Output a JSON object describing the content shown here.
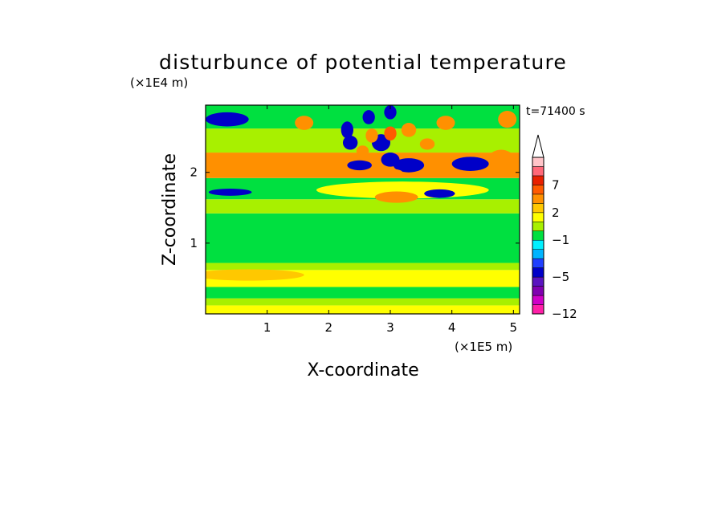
{
  "chart_data": {
    "type": "heatmap",
    "title": "disturbunce of potential temperature",
    "xlabel": "X-coordinate",
    "ylabel": "Z-coordinate",
    "x_unit": "(×1E5 m)",
    "y_unit": "(×1E4 m)",
    "time_label": "t=71400 s",
    "xlim": [
      0,
      5.1
    ],
    "ylim": [
      0,
      2.95
    ],
    "x_ticks": [
      1,
      2,
      3,
      4,
      5
    ],
    "y_ticks": [
      1,
      2
    ],
    "x_tick_labels": [
      "1",
      "2",
      "3",
      "4",
      "5"
    ],
    "y_tick_labels": [
      "1",
      "2"
    ],
    "colorbar": {
      "levels": [
        -12,
        -10,
        -8,
        -6,
        -5,
        -4,
        -3,
        -2,
        -1,
        0,
        1,
        2,
        3,
        5,
        7,
        9,
        11
      ],
      "colors": [
        "#ff1fa8",
        "#d000c8",
        "#8000b0",
        "#5a14c0",
        "#0000c8",
        "#2040ff",
        "#00b4ff",
        "#00f0ff",
        "#00e040",
        "#a8f000",
        "#ffff00",
        "#ffc800",
        "#ff9000",
        "#ff5a00",
        "#e82000",
        "#ff6878",
        "#ffc4c8"
      ],
      "tick_values": [
        -12,
        -5,
        -1,
        2,
        7
      ],
      "tick_labels": [
        "-12",
        "-5",
        "-1",
        "2",
        "7"
      ],
      "extend_max": true
    },
    "bands": [
      {
        "z0": 0.0,
        "z1": 0.12,
        "value": 1.5
      },
      {
        "z0": 0.12,
        "z1": 0.22,
        "value": 0.5
      },
      {
        "z0": 0.22,
        "z1": 0.38,
        "value": -0.5
      },
      {
        "z0": 0.38,
        "z1": 0.62,
        "value": 1.8
      },
      {
        "z0": 0.62,
        "z1": 0.72,
        "value": 0.5
      },
      {
        "z0": 0.72,
        "z1": 1.42,
        "value": -0.5
      },
      {
        "z0": 1.42,
        "z1": 1.62,
        "value": 0.5
      },
      {
        "z0": 1.62,
        "z1": 1.92,
        "value": -0.5
      },
      {
        "z0": 1.92,
        "z1": 2.28,
        "value": 3.5
      },
      {
        "z0": 2.28,
        "z1": 2.62,
        "value": 0.5
      },
      {
        "z0": 2.62,
        "z1": 2.95,
        "value": -0.5
      }
    ],
    "features": [
      {
        "x": 0.7,
        "z": 0.55,
        "rx": 0.9,
        "rz": 0.08,
        "value": 2.5
      },
      {
        "x": 3.2,
        "z": 1.75,
        "rx": 1.4,
        "rz": 0.12,
        "value": 1.5
      },
      {
        "x": 3.1,
        "z": 1.65,
        "rx": 0.35,
        "rz": 0.08,
        "value": 3.5
      },
      {
        "x": 0.4,
        "z": 2.12,
        "rx": 0.6,
        "rz": 0.13,
        "value": 4.5
      },
      {
        "x": 0.35,
        "z": 2.75,
        "rx": 0.35,
        "rz": 0.1,
        "value": -4.5
      },
      {
        "x": 0.4,
        "z": 1.72,
        "rx": 0.35,
        "rz": 0.05,
        "value": -4.5
      },
      {
        "x": 2.3,
        "z": 2.6,
        "rx": 0.1,
        "rz": 0.12,
        "value": -4.5
      },
      {
        "x": 2.65,
        "z": 2.78,
        "rx": 0.1,
        "rz": 0.1,
        "value": -4.5
      },
      {
        "x": 3.0,
        "z": 2.85,
        "rx": 0.1,
        "rz": 0.1,
        "value": -4.5
      },
      {
        "x": 2.35,
        "z": 2.42,
        "rx": 0.12,
        "rz": 0.1,
        "value": -4.5
      },
      {
        "x": 2.85,
        "z": 2.42,
        "rx": 0.15,
        "rz": 0.12,
        "value": -4.5
      },
      {
        "x": 2.5,
        "z": 2.1,
        "rx": 0.2,
        "rz": 0.07,
        "value": -4.5
      },
      {
        "x": 3.0,
        "z": 2.18,
        "rx": 0.15,
        "rz": 0.1,
        "value": -4.5
      },
      {
        "x": 3.3,
        "z": 2.1,
        "rx": 0.25,
        "rz": 0.1,
        "value": -4.5
      },
      {
        "x": 3.8,
        "z": 1.7,
        "rx": 0.25,
        "rz": 0.06,
        "value": -4.5
      },
      {
        "x": 4.3,
        "z": 2.12,
        "rx": 0.3,
        "rz": 0.1,
        "value": -4.5
      },
      {
        "x": 2.7,
        "z": 2.52,
        "rx": 0.1,
        "rz": 0.1,
        "value": 4.5
      },
      {
        "x": 3.0,
        "z": 2.55,
        "rx": 0.1,
        "rz": 0.1,
        "value": 6.5
      },
      {
        "x": 2.55,
        "z": 2.3,
        "rx": 0.1,
        "rz": 0.08,
        "value": 3.5
      },
      {
        "x": 3.3,
        "z": 2.6,
        "rx": 0.12,
        "rz": 0.1,
        "value": 3.5
      },
      {
        "x": 3.6,
        "z": 2.4,
        "rx": 0.12,
        "rz": 0.08,
        "value": 3.5
      },
      {
        "x": 3.9,
        "z": 2.7,
        "rx": 0.15,
        "rz": 0.1,
        "value": 3.5
      },
      {
        "x": 3.0,
        "z": 2.0,
        "rx": 0.2,
        "rz": 0.05,
        "value": 3.5
      },
      {
        "x": 4.8,
        "z": 2.2,
        "rx": 0.2,
        "rz": 0.12,
        "value": 4.5
      },
      {
        "x": 4.9,
        "z": 2.75,
        "rx": 0.15,
        "rz": 0.12,
        "value": 3.5
      },
      {
        "x": 1.6,
        "z": 2.7,
        "rx": 0.15,
        "rz": 0.1,
        "value": 3.5
      }
    ]
  }
}
